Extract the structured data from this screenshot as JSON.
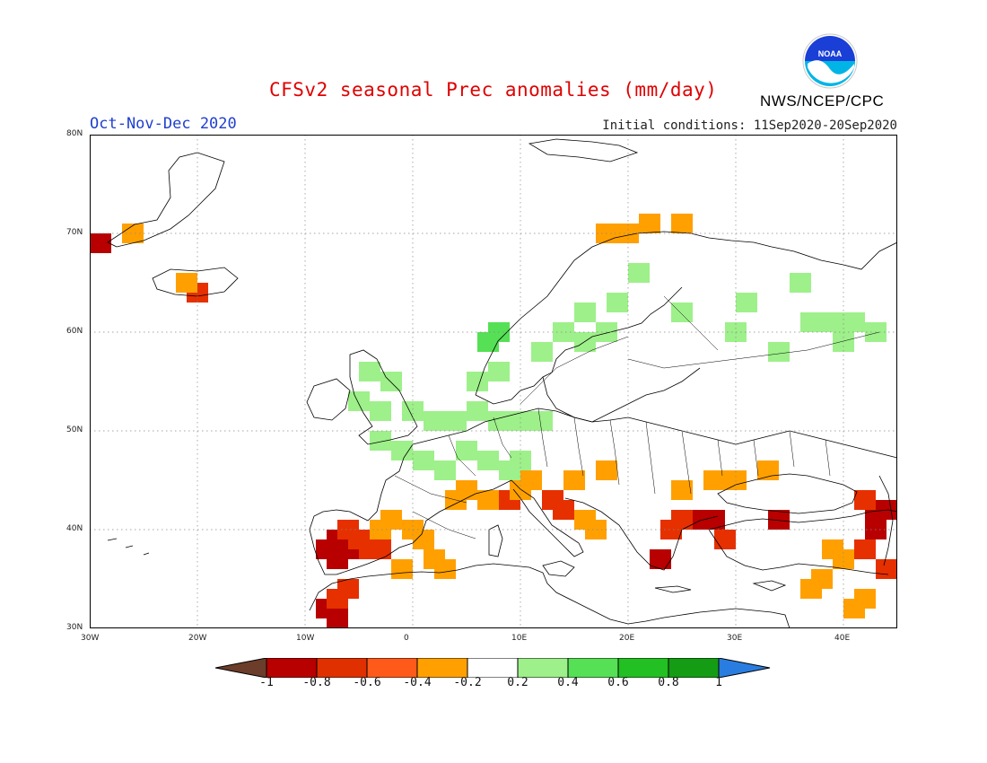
{
  "title": "CFSv2 seasonal Prec anomalies (mm/day)",
  "period": "Oct-Nov-Dec 2020",
  "initial_conditions": "Initial conditions: 11Sep2020-20Sep2020",
  "agency": "NWS/NCEP/CPC",
  "logo_text": "NOAA",
  "map": {
    "lon_range": [
      -30,
      45
    ],
    "lat_range": [
      30,
      80
    ],
    "lat_ticks": [
      "80N",
      "70N",
      "60N",
      "50N",
      "40N",
      "30N"
    ],
    "lon_ticks": [
      "30W",
      "20W",
      "10W",
      "0",
      "10E",
      "20E",
      "30E",
      "40E"
    ],
    "grid": "dotted"
  },
  "colorbar": {
    "labels": [
      "-1",
      "-0.8",
      "-0.6",
      "-0.4",
      "-0.2",
      "0.2",
      "0.4",
      "0.6",
      "0.8",
      "1"
    ],
    "colors": [
      "#6b3d2a",
      "#b80000",
      "#e03000",
      "#ff5a1a",
      "#ffa000",
      "#ffffff",
      "#9ef08a",
      "#55e055",
      "#22c022",
      "#159c15",
      "#2a7de0"
    ]
  },
  "anomaly_cells": {
    "note_units": "mm/day",
    "dry_strong": [
      [
        -7,
        39
      ],
      [
        -6,
        38
      ],
      [
        -8,
        38
      ],
      [
        -7,
        37
      ],
      [
        -8,
        32
      ],
      [
        -7,
        31
      ],
      [
        23,
        37
      ],
      [
        27,
        41
      ],
      [
        28,
        41
      ],
      [
        34,
        41
      ],
      [
        43,
        42
      ],
      [
        44,
        42
      ],
      [
        43,
        40
      ],
      [
        -29,
        69
      ]
    ],
    "dry_moderate": [
      [
        -6,
        40
      ],
      [
        -5,
        39
      ],
      [
        -4,
        38
      ],
      [
        -3,
        38
      ],
      [
        -6,
        34
      ],
      [
        -7,
        33
      ],
      [
        13,
        43
      ],
      [
        14,
        42
      ],
      [
        24,
        40
      ],
      [
        25,
        41
      ],
      [
        29,
        39
      ],
      [
        42,
        38
      ],
      [
        44,
        36
      ],
      [
        42,
        43
      ],
      [
        -20,
        64
      ],
      [
        9,
        43
      ]
    ],
    "dry_weak": [
      [
        -3,
        40
      ],
      [
        -2,
        41
      ],
      [
        0,
        40
      ],
      [
        1,
        39
      ],
      [
        -1,
        36
      ],
      [
        2,
        37
      ],
      [
        3,
        36
      ],
      [
        4,
        43
      ],
      [
        5,
        44
      ],
      [
        7,
        43
      ],
      [
        10,
        44
      ],
      [
        11,
        45
      ],
      [
        15,
        45
      ],
      [
        16,
        41
      ],
      [
        17,
        40
      ],
      [
        18,
        46
      ],
      [
        25,
        44
      ],
      [
        28,
        45
      ],
      [
        30,
        45
      ],
      [
        33,
        46
      ],
      [
        39,
        38
      ],
      [
        40,
        37
      ],
      [
        38,
        35
      ],
      [
        37,
        34
      ],
      [
        41,
        32
      ],
      [
        42,
        33
      ],
      [
        -26,
        70
      ],
      [
        -21,
        65
      ],
      [
        18,
        70
      ],
      [
        20,
        70
      ],
      [
        22,
        71
      ],
      [
        25,
        71
      ]
    ],
    "wet_weak": [
      [
        -4,
        56
      ],
      [
        -2,
        55
      ],
      [
        -5,
        53
      ],
      [
        -3,
        52
      ],
      [
        0,
        52
      ],
      [
        2,
        51
      ],
      [
        4,
        51
      ],
      [
        6,
        52
      ],
      [
        8,
        51
      ],
      [
        10,
        51
      ],
      [
        12,
        51
      ],
      [
        -3,
        49
      ],
      [
        -1,
        48
      ],
      [
        1,
        47
      ],
      [
        3,
        46
      ],
      [
        5,
        48
      ],
      [
        7,
        47
      ],
      [
        9,
        46
      ],
      [
        10,
        47
      ],
      [
        6,
        55
      ],
      [
        8,
        56
      ],
      [
        12,
        58
      ],
      [
        14,
        60
      ],
      [
        16,
        59
      ],
      [
        16,
        62
      ],
      [
        18,
        60
      ],
      [
        19,
        63
      ],
      [
        25,
        62
      ],
      [
        30,
        60
      ],
      [
        31,
        63
      ],
      [
        34,
        58
      ],
      [
        37,
        61
      ],
      [
        39,
        61
      ],
      [
        40,
        59
      ],
      [
        41,
        61
      ],
      [
        43,
        60
      ],
      [
        21,
        66
      ],
      [
        36,
        65
      ]
    ],
    "wet_moderate": [
      [
        8,
        60
      ],
      [
        7,
        59
      ]
    ]
  }
}
